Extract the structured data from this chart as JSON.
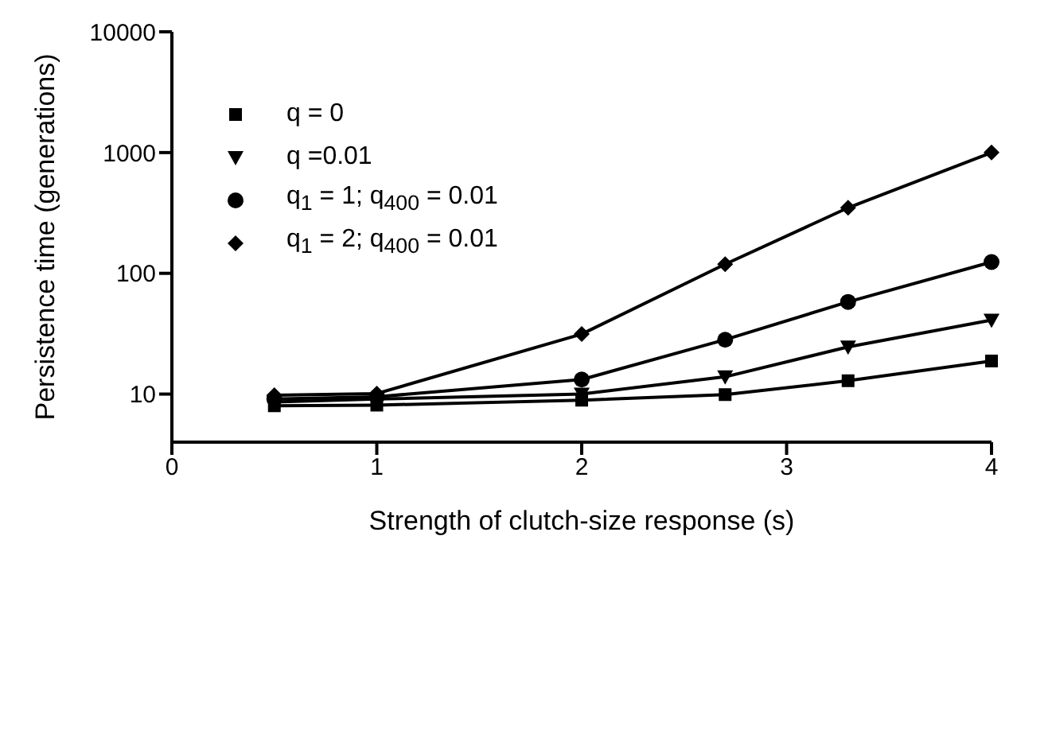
{
  "chart_data": {
    "type": "line",
    "xlabel": "Strength of clutch-size response (s)",
    "ylabel": "Persistence time (generations)",
    "x": [
      0.5,
      1,
      2,
      2.7,
      3.3,
      4
    ],
    "xlim": [
      0,
      4
    ],
    "xticks": [
      0,
      1,
      2,
      3,
      4
    ],
    "ylim": [
      4,
      10000
    ],
    "yticks": [
      10,
      100,
      1000,
      10000
    ],
    "log": "y",
    "grid": false,
    "legend": "top left",
    "line_style": "solid",
    "series": [
      {
        "name": "q = 0",
        "color": "#000000",
        "marker": "square",
        "values": [
          8,
          8.1,
          8.9,
          9.9,
          12.9,
          18.8
        ]
      },
      {
        "name": "q =0.01",
        "color": "#000000",
        "marker": "triangle",
        "values": [
          8.6,
          9.1,
          10,
          13.9,
          24.6,
          41
        ]
      },
      {
        "name": "q$_{1}$ = 1; q$_{400}$ = 0.01",
        "color": "#000000",
        "marker": "circle",
        "values": [
          9.1,
          9.5,
          13.2,
          28.2,
          58,
          124
        ]
      },
      {
        "name": "q$_{1}$ = 2; q$_{400}$ = 0.01",
        "color": "#000000",
        "marker": "diamond",
        "values": [
          9.8,
          10.1,
          31.4,
          119,
          349,
          1000
        ]
      }
    ]
  }
}
